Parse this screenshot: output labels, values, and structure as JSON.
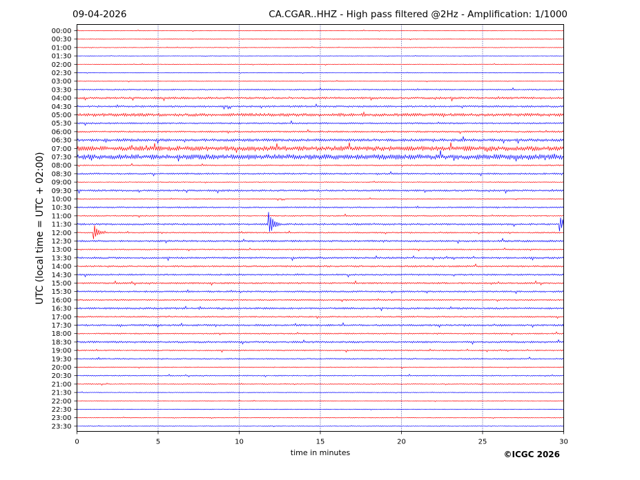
{
  "header": {
    "date": "09-04-2026",
    "title": "CA.CGAR..HHZ - High pass filtered @2Hz - Amplification: 1/1000"
  },
  "footer": {
    "copyright": "©ICGC 2026"
  },
  "colors": {
    "trace_a": "#ff0000",
    "trace_b": "#0000ff",
    "grid": "#000080",
    "frame": "#000000",
    "background": "#ffffff"
  },
  "chart_data": {
    "type": "line",
    "title": "CA.CGAR..HHZ - High pass filtered @2Hz - Amplification: 1/1000",
    "xlabel": "time in minutes",
    "ylabel": "UTC (local time = UTC + 02:00)",
    "xlim": [
      0,
      30
    ],
    "xticks": [
      0,
      5,
      10,
      15,
      20,
      25,
      30
    ],
    "vertical_grid": "dotted at 5, 10, 15, 20, 25",
    "row_labels": [
      "00:00",
      "00:30",
      "01:00",
      "01:30",
      "02:00",
      "02:30",
      "03:00",
      "03:30",
      "04:00",
      "04:30",
      "05:00",
      "05:30",
      "06:00",
      "06:30",
      "07:00",
      "07:30",
      "08:00",
      "08:30",
      "09:00",
      "09:30",
      "10:00",
      "10:30",
      "11:00",
      "11:30",
      "12:00",
      "12:30",
      "13:00",
      "13:30",
      "14:00",
      "14:30",
      "15:00",
      "15:30",
      "16:00",
      "16:30",
      "17:00",
      "17:30",
      "18:00",
      "18:30",
      "19:00",
      "19:30",
      "20:00",
      "20:30",
      "21:00",
      "21:30",
      "22:00",
      "22:30",
      "23:00",
      "23:30"
    ],
    "row_colors": [
      "#ff0000",
      "#ff0000",
      "#ff0000",
      "#0000ff",
      "#ff0000",
      "#0000ff",
      "#ff0000",
      "#0000ff",
      "#ff0000",
      "#0000ff",
      "#ff0000",
      "#0000ff",
      "#ff0000",
      "#0000ff",
      "#ff0000",
      "#0000ff",
      "#ff0000",
      "#0000ff",
      "#ff0000",
      "#0000ff",
      "#ff0000",
      "#0000ff",
      "#ff0000",
      "#0000ff",
      "#ff0000",
      "#0000ff",
      "#ff0000",
      "#0000ff",
      "#ff0000",
      "#0000ff",
      "#ff0000",
      "#0000ff",
      "#ff0000",
      "#0000ff",
      "#ff0000",
      "#0000ff",
      "#ff0000",
      "#0000ff",
      "#ff0000",
      "#0000ff",
      "#ff0000",
      "#0000ff",
      "#ff0000",
      "#0000ff",
      "#ff0000",
      "#0000ff",
      "#ff0000",
      "#0000ff"
    ],
    "row_noise": [
      0.3,
      0.3,
      0.3,
      0.2,
      0.3,
      0.3,
      0.3,
      0.6,
      1.0,
      0.9,
      1.5,
      0.8,
      0.8,
      1.3,
      2.2,
      2.4,
      0.6,
      0.8,
      0.4,
      0.9,
      0.5,
      0.7,
      0.6,
      0.9,
      0.6,
      0.9,
      0.6,
      0.9,
      0.8,
      0.8,
      0.8,
      0.8,
      0.7,
      0.9,
      0.7,
      0.9,
      0.6,
      0.9,
      0.6,
      0.6,
      0.4,
      0.5,
      0.4,
      0.3,
      0.3,
      0.3,
      0.3,
      0.3
    ],
    "events": [
      {
        "row": "11:30",
        "minute": 11.8,
        "amplitude_rows": 1.9
      },
      {
        "row": "11:30",
        "minute": 29.7,
        "amplitude_rows": 1.2
      },
      {
        "row": "12:00",
        "minute": 1.0,
        "amplitude_rows": 1.2
      }
    ]
  }
}
